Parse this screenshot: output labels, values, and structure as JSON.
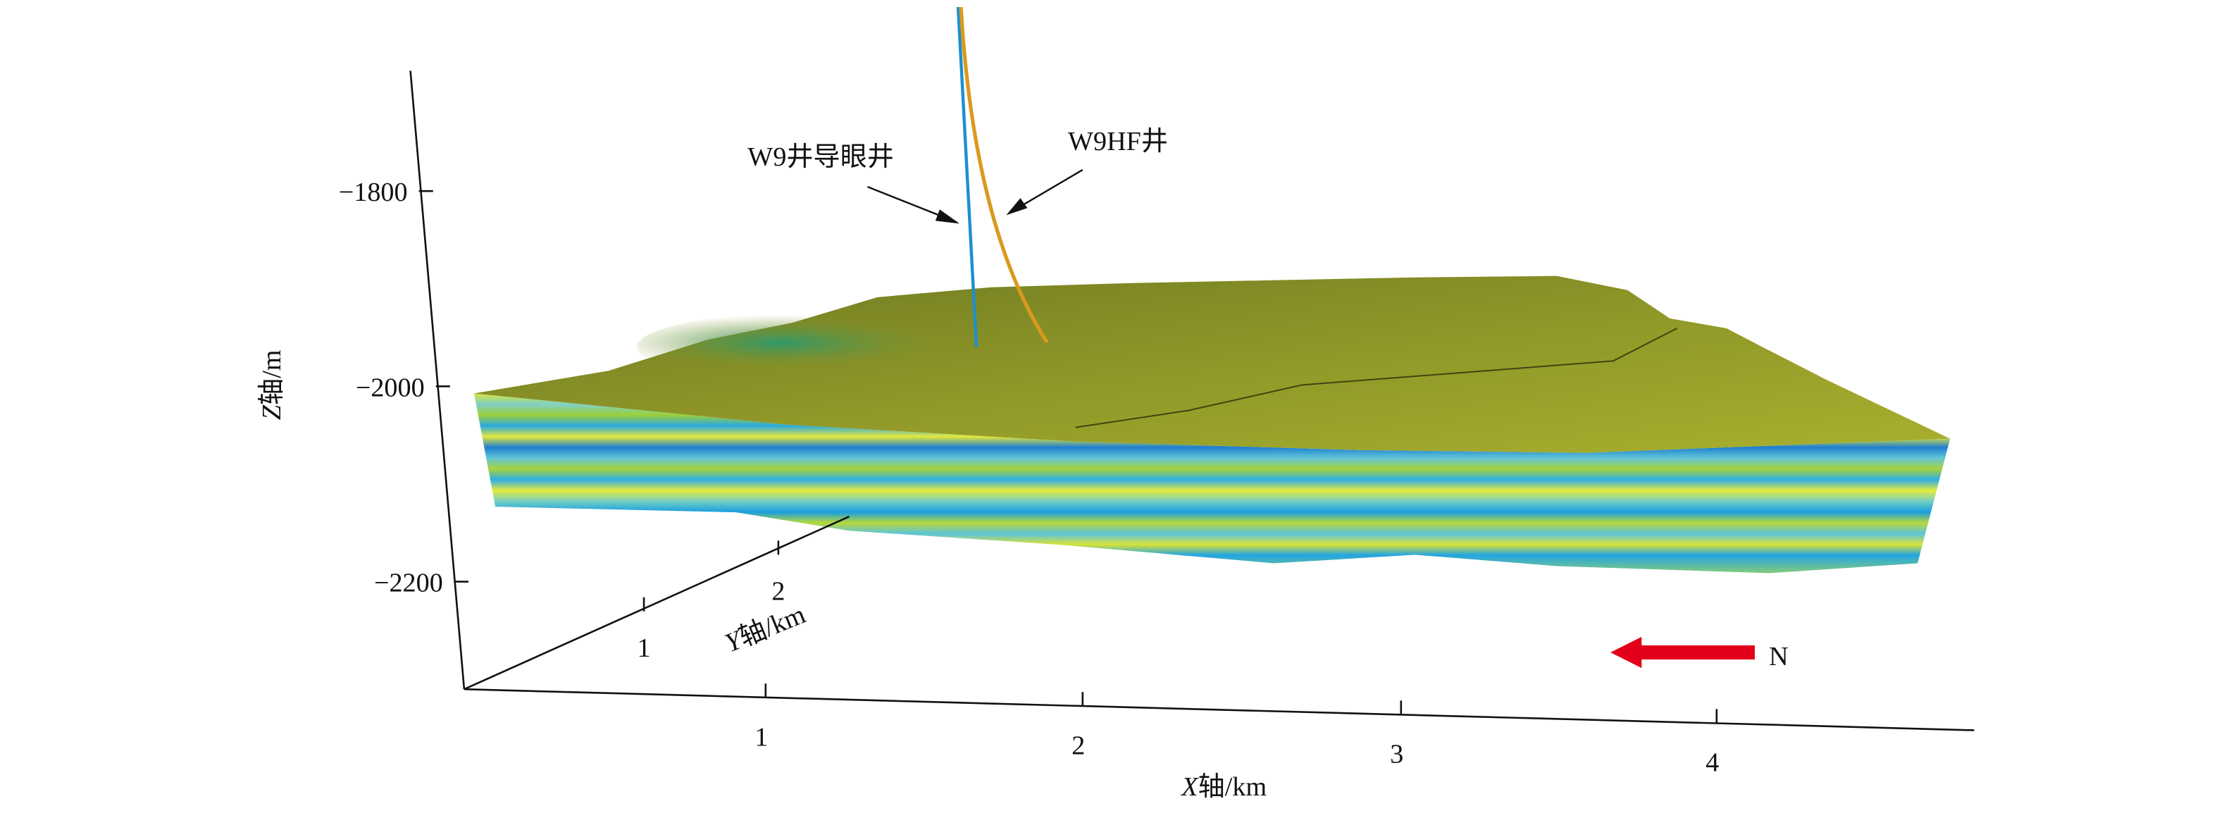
{
  "z_axis": {
    "letter": "Z",
    "unit": "轴/m",
    "ticks": [
      "−1800",
      "−2000",
      "−2200"
    ]
  },
  "x_axis": {
    "letter": "X",
    "unit": "轴/km",
    "ticks": [
      "1",
      "2",
      "3",
      "4"
    ]
  },
  "y_axis": {
    "letter": "Y",
    "unit": "轴/km",
    "ticks": [
      "1",
      "2"
    ]
  },
  "annotations": {
    "pilot_well": "W9井导眼井",
    "horizontal_well": "W9HF井",
    "north": "N"
  }
}
